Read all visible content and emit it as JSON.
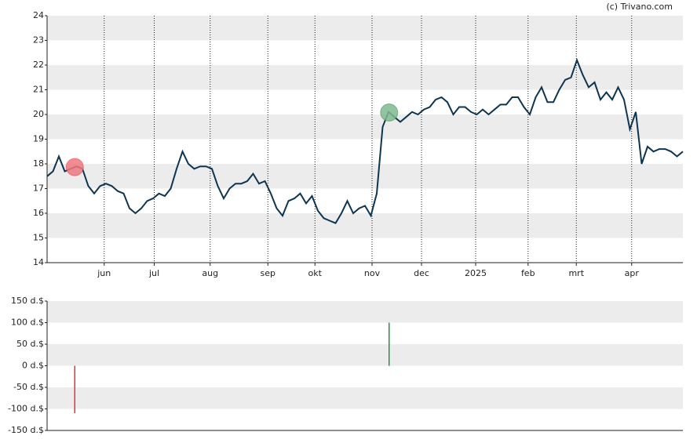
{
  "credit": "(c) Trivano.com",
  "chart_data": [
    {
      "type": "line",
      "series": [
        {
          "color": "#0d3552",
          "values": [
            17.5,
            17.7,
            18.3,
            17.7,
            17.8,
            17.9,
            17.8,
            17.1,
            16.8,
            17.1,
            17.2,
            17.1,
            16.9,
            16.8,
            16.2,
            16.0,
            16.2,
            16.5,
            16.6,
            16.8,
            16.7,
            17.0,
            17.8,
            18.5,
            18.0,
            17.8,
            17.9,
            17.9,
            17.8,
            17.1,
            16.6,
            17.0,
            17.2,
            17.2,
            17.3,
            17.6,
            17.2,
            17.3,
            16.8,
            16.2,
            15.9,
            16.5,
            16.6,
            16.8,
            16.4,
            16.7,
            16.1,
            15.8,
            15.7,
            15.6,
            16.0,
            16.5,
            16.0,
            16.2,
            16.3,
            15.9,
            16.8,
            19.5,
            20.1,
            19.9,
            19.7,
            19.9,
            20.1,
            20.0,
            20.2,
            20.3,
            20.6,
            20.7,
            20.5,
            20.0,
            20.3,
            20.3,
            20.1,
            20.0,
            20.2,
            20.0,
            20.2,
            20.4,
            20.4,
            20.7,
            20.7,
            20.3,
            20.0,
            20.7,
            21.1,
            20.5,
            20.5,
            21.0,
            21.4,
            21.5,
            22.2,
            21.6,
            21.1,
            21.3,
            20.6,
            20.9,
            20.6,
            21.1,
            20.6,
            19.4,
            20.1,
            18.0,
            18.7,
            18.5,
            18.6,
            18.6,
            18.5,
            18.3,
            18.5
          ]
        }
      ],
      "xlim": [
        0,
        108
      ],
      "xticks": [
        {
          "value": 9.7,
          "label": "jun"
        },
        {
          "value": 18.2,
          "label": "jul"
        },
        {
          "value": 27.7,
          "label": "aug"
        },
        {
          "value": 37.5,
          "label": "sep"
        },
        {
          "value": 45.5,
          "label": "okt"
        },
        {
          "value": 55.2,
          "label": "nov"
        },
        {
          "value": 63.6,
          "label": "dec"
        },
        {
          "value": 72.8,
          "label": "2025"
        },
        {
          "value": 81.7,
          "label": "feb"
        },
        {
          "value": 89.9,
          "label": "mrt"
        },
        {
          "value": 99.3,
          "label": "apr"
        }
      ],
      "ylim": [
        14,
        24
      ],
      "yticks": [
        14,
        15,
        16,
        17,
        18,
        19,
        20,
        21,
        22,
        23,
        24
      ],
      "grid": true
    },
    {
      "type": "bar",
      "x": [
        4.7,
        58.1
      ],
      "values": [
        -110,
        100
      ],
      "colors": [
        "#e8303a",
        "#2e8b45"
      ],
      "marker_colors": [
        "#f07880",
        "#80b890"
      ],
      "xlim": [
        0,
        108
      ],
      "ylim": [
        -150,
        150
      ],
      "yticks": [
        {
          "value": 150,
          "label": "150 d.$"
        },
        {
          "value": 100,
          "label": "100 d.$"
        },
        {
          "value": 50,
          "label": "50 d.$"
        },
        {
          "value": 0,
          "label": "0 d.$"
        },
        {
          "value": -50,
          "label": "-50 d.$"
        },
        {
          "value": -100,
          "label": "-100 d.$"
        },
        {
          "value": -150,
          "label": "-150 d.$"
        }
      ],
      "grid": true
    }
  ]
}
